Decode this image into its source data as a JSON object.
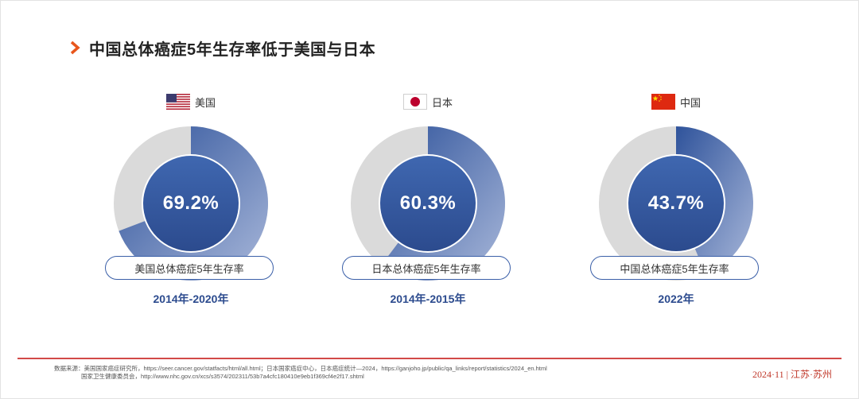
{
  "title": "中国总体癌症5年生存率低于美国与日本",
  "chart_data": [
    {
      "type": "pie",
      "country": "美国",
      "flag": "us-flag-icon",
      "value": 69.2,
      "value_label": "69.2%",
      "metric_label": "美国总体癌症5年生存率",
      "period": "2014年-2020年"
    },
    {
      "type": "pie",
      "country": "日本",
      "flag": "japan-flag-icon",
      "value": 60.3,
      "value_label": "60.3%",
      "metric_label": "日本总体癌症5年生存率",
      "period": "2014年-2015年"
    },
    {
      "type": "pie",
      "country": "中国",
      "flag": "china-flag-icon",
      "value": 43.7,
      "value_label": "43.7%",
      "metric_label": "中国总体癌症5年生存率",
      "period": "2022年"
    }
  ],
  "colors": {
    "ring_fill_dark": "#2f539b",
    "ring_fill_light": "#a9b8da",
    "ring_track": "#dadada",
    "center_dark": "#2c4b8e",
    "center_light": "#3f67b0",
    "accent_red": "#d24a48",
    "chevron": "#e8561c"
  },
  "footer": {
    "source_line1": "数据来源：美国国家癌症研究所，https://seer.cancer.gov/statfacts/html/all.html；日本国家癌症中心，日本癌症统计—2024，https://ganjoho.jp/public/qa_links/report/statistics/2024_en.html",
    "source_line2": "国家卫生健康委员会，http://www.nhc.gov.cn/xcs/s3574/202311/53b7a4cfc180410e9eb1f369cf4e2f17.shtml",
    "date_location": "2024·11 | 江苏·苏州"
  }
}
